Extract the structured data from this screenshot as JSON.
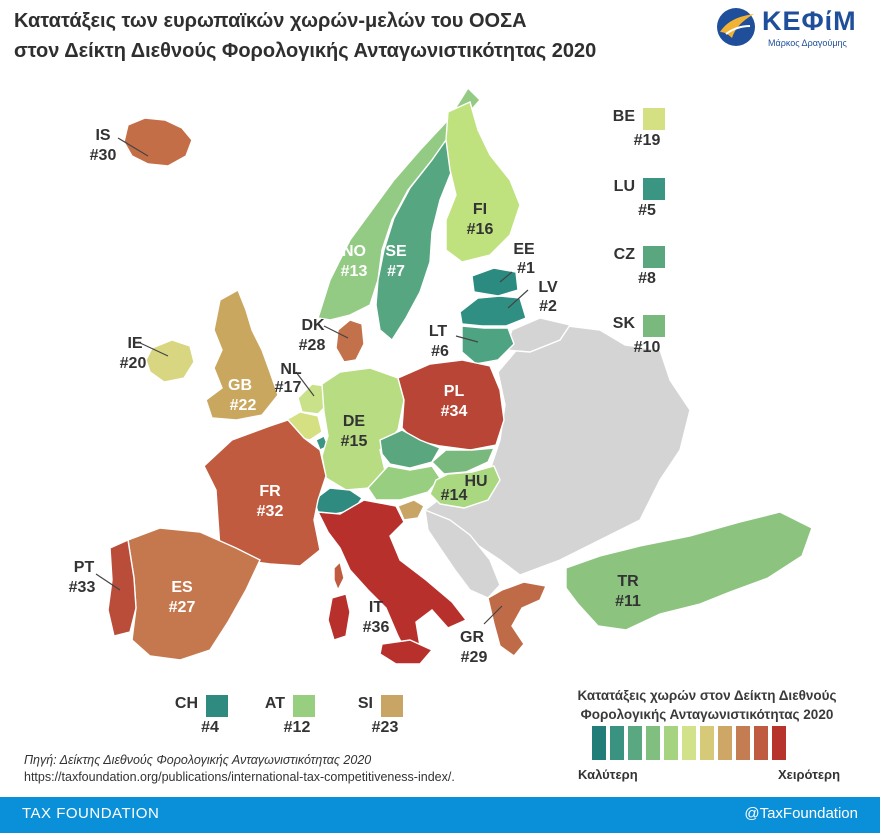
{
  "title_line1": "Κατατάξεις των ευρωπαϊκών χωρών-μελών του ΟΟΣΑ",
  "title_line2": "στον Δείκτη Διεθνούς Φορολογικής Ανταγωνιστικότητας 2020",
  "logo": {
    "word": "ΚΕΦίΜ",
    "sub": "Μάρκος Δραγούμης"
  },
  "countries": {
    "IS": {
      "code": "IS",
      "rank": "#30",
      "color": "#c46e47"
    },
    "IE": {
      "code": "IE",
      "rank": "#20",
      "color": "#d9d682"
    },
    "GB": {
      "code": "GB",
      "rank": "#22",
      "color": "#c9a75e"
    },
    "NO": {
      "code": "NO",
      "rank": "#13",
      "color": "#94cb84"
    },
    "SE": {
      "code": "SE",
      "rank": "#7",
      "color": "#55a681"
    },
    "FI": {
      "code": "FI",
      "rank": "#16",
      "color": "#bfe27e"
    },
    "EE": {
      "code": "EE",
      "rank": "#1",
      "color": "#2b8b80"
    },
    "LV": {
      "code": "LV",
      "rank": "#2",
      "color": "#2f8f82"
    },
    "LT": {
      "code": "LT",
      "rank": "#6",
      "color": "#4ea482"
    },
    "DK": {
      "code": "DK",
      "rank": "#28",
      "color": "#c2714b"
    },
    "NL": {
      "code": "NL",
      "rank": "#17",
      "color": "#c9e28a"
    },
    "DE": {
      "code": "DE",
      "rank": "#15",
      "color": "#b7dc82"
    },
    "PL": {
      "code": "PL",
      "rank": "#34",
      "color": "#b84536"
    },
    "CZ": {
      "code": "CZ",
      "rank": "#8",
      "color": "#5aa67f"
    },
    "SK": {
      "code": "SK",
      "rank": "#10",
      "color": "#79b97d"
    },
    "HU": {
      "code": "HU",
      "rank": "#14",
      "color": "#aad881"
    },
    "AT": {
      "code": "AT",
      "rank": "#12",
      "color": "#98ce80"
    },
    "CH": {
      "code": "CH",
      "rank": "#4",
      "color": "#2f8b7f"
    },
    "SI": {
      "code": "SI",
      "rank": "#23",
      "color": "#c9a565"
    },
    "BE": {
      "code": "BE",
      "rank": "#19",
      "color": "#d4e081"
    },
    "LU": {
      "code": "LU",
      "rank": "#5",
      "color": "#3b9583"
    },
    "FR": {
      "code": "FR",
      "rank": "#32",
      "color": "#c05b3f"
    },
    "ES": {
      "code": "ES",
      "rank": "#27",
      "color": "#c5784e"
    },
    "PT": {
      "code": "PT",
      "rank": "#33",
      "color": "#ba4d3a"
    },
    "IT": {
      "code": "IT",
      "rank": "#36",
      "color": "#b8302b"
    },
    "GR": {
      "code": "GR",
      "rank": "#29",
      "color": "#c06b48"
    },
    "TR": {
      "code": "TR",
      "rank": "#11",
      "color": "#8cc47f"
    }
  },
  "non_oecd_color": "#d4d4d4",
  "legend": {
    "title_line1": "Κατατάξεις χωρών στον Δείκτη Διεθνούς",
    "title_line2": "Φορολογικής Ανταγωνιστικότητας 2020",
    "best": "Καλύτερη",
    "worst": "Χειρότερη",
    "colors": [
      "#217d78",
      "#3a9381",
      "#5aa882",
      "#80bf80",
      "#a6d37f",
      "#d2e28a",
      "#d6c978",
      "#cea766",
      "#c47d52",
      "#bf5b40",
      "#b7342c"
    ]
  },
  "source": {
    "label": "Πηγή: Δείκτης Διεθνούς Φορολογικής Ανταγωνιστικότητας 2020",
    "url": "https://taxfoundation.org/publications/international-tax-competitiveness-index/."
  },
  "footer": {
    "left": "TAX FOUNDATION",
    "right": "@TaxFoundation"
  }
}
